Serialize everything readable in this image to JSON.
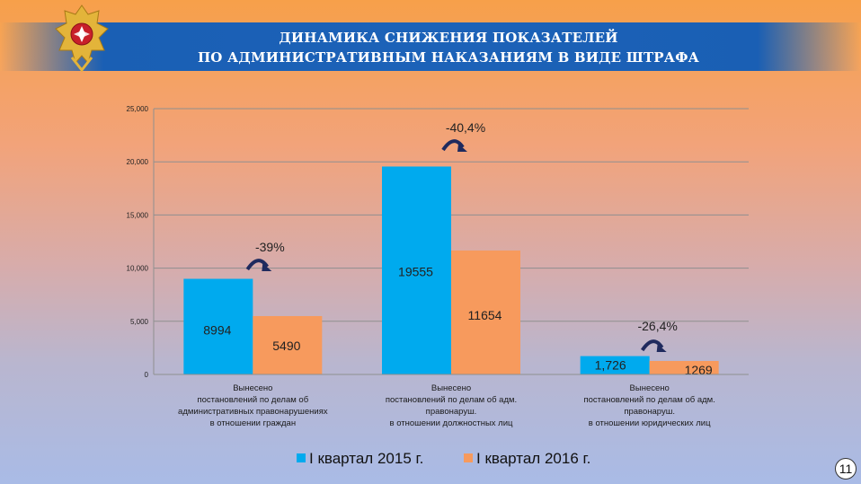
{
  "header": {
    "title_line1": "ДИНАМИКА СНИЖЕНИЯ ПОКАЗАТЕЛЕЙ",
    "title_line2": "ПО АДМИНИСТРАТИВНЫМ НАКАЗАНИЯМ В ВИДЕ ШТРАФА"
  },
  "page_number": "11",
  "colors": {
    "series_2015": "#00aaee",
    "series_2016": "#f79a5d",
    "arrow": "#1f2a5e",
    "header_band": "#1c62b8"
  },
  "chart_data": {
    "type": "bar",
    "ylim": [
      0,
      25000
    ],
    "y_ticks": [
      "0",
      "5,000",
      "10,000",
      "15,000",
      "20,000",
      "25,000"
    ],
    "y_tick_values": [
      0,
      5000,
      10000,
      15000,
      20000,
      25000
    ],
    "grid": true,
    "legend_position": "bottom",
    "categories": [
      [
        "Вынесено",
        "постановлений по делам об",
        "административных правонарушениях",
        "в отношении граждан"
      ],
      [
        "Вынесено",
        "постановлений по делам об адм.",
        "правонаруш.",
        "в отношении должностных лиц"
      ],
      [
        "Вынесено",
        "постановлений по делам об адм.",
        "правонаруш.",
        "в отношении юридических лиц"
      ]
    ],
    "series": [
      {
        "name": "I квартал 2015 г.",
        "values": [
          8994,
          19555,
          1726
        ],
        "labels": [
          "8994",
          "19555",
          "1,726"
        ]
      },
      {
        "name": "I квартал 2016 г.",
        "values": [
          5490,
          11654,
          1269
        ],
        "labels": [
          "5490",
          "11654",
          "1269"
        ]
      }
    ],
    "annotations": [
      "-39%",
      "-40,4%",
      "-26,4%"
    ]
  }
}
